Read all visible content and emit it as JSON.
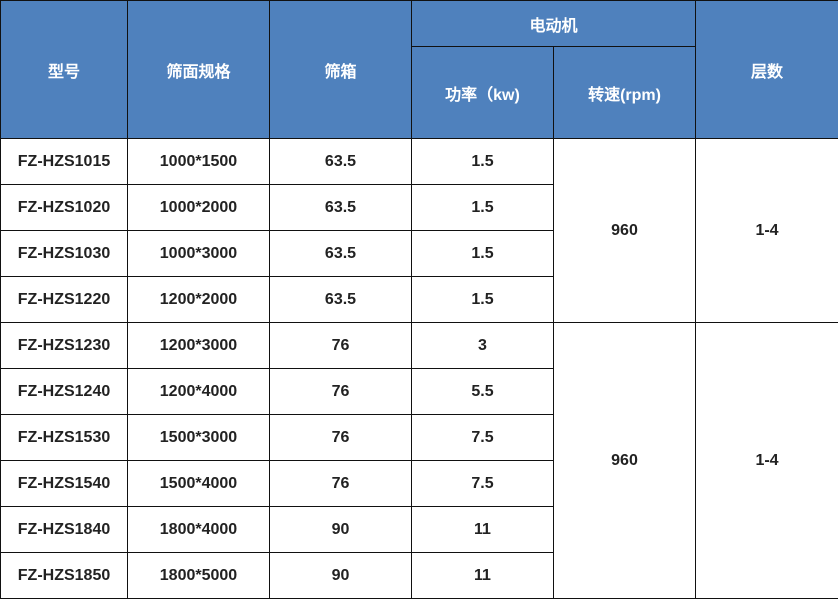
{
  "header": {
    "model": "型号",
    "screen_spec": "筛面规格",
    "screen_box": "筛箱",
    "motor": "电动机",
    "power": "功率（kw)",
    "speed": "转速(rpm)",
    "layers": "层数"
  },
  "header_color": "#4f81bd",
  "rows": [
    {
      "model": "FZ-HZS1015",
      "spec": "1000*1500",
      "box": "63.5",
      "power": "1.5"
    },
    {
      "model": "FZ-HZS1020",
      "spec": "1000*2000",
      "box": "63.5",
      "power": "1.5"
    },
    {
      "model": "FZ-HZS1030",
      "spec": "1000*3000",
      "box": "63.5",
      "power": "1.5"
    },
    {
      "model": "FZ-HZS1220",
      "spec": "1200*2000",
      "box": "63.5",
      "power": "1.5"
    },
    {
      "model": "FZ-HZS1230",
      "spec": "1200*3000",
      "box": "76",
      "power": "3"
    },
    {
      "model": "FZ-HZS1240",
      "spec": "1200*4000",
      "box": "76",
      "power": "5.5"
    },
    {
      "model": "FZ-HZS1530",
      "spec": "1500*3000",
      "box": "76",
      "power": "7.5"
    },
    {
      "model": "FZ-HZS1540",
      "spec": "1500*4000",
      "box": "76",
      "power": "7.5"
    },
    {
      "model": "FZ-HZS1840",
      "spec": "1800*4000",
      "box": "90",
      "power": "11"
    },
    {
      "model": "FZ-HZS1850",
      "spec": "1800*5000",
      "box": "90",
      "power": "11"
    }
  ],
  "groups": [
    {
      "speed": "960",
      "layers": "1-4",
      "span": 4
    },
    {
      "speed": "960",
      "layers": "1-4",
      "span": 6
    }
  ]
}
